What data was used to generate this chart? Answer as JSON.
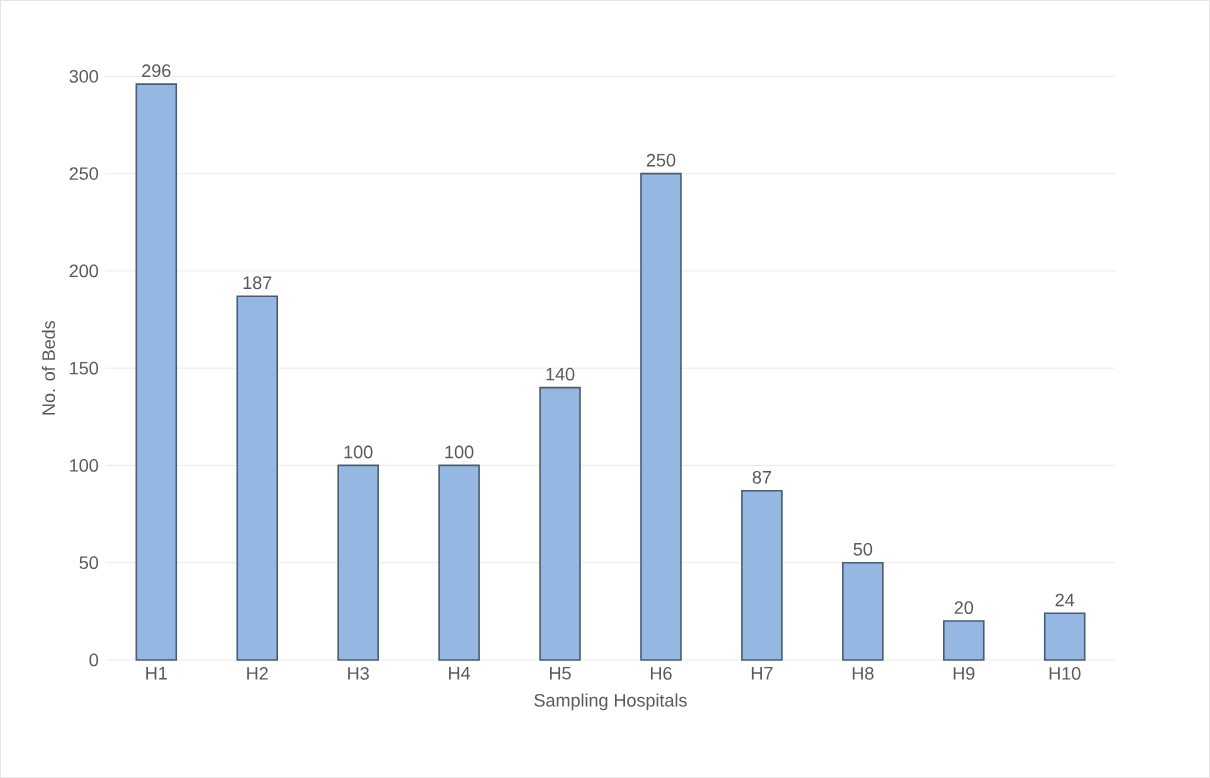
{
  "chart_data": {
    "type": "bar",
    "xlabel": "Sampling Hospitals",
    "ylabel": "No. of Beds",
    "categories": [
      "H1",
      "H2",
      "H3",
      "H4",
      "H5",
      "H6",
      "H7",
      "H8",
      "H9",
      "H10"
    ],
    "values": [
      296,
      187,
      100,
      100,
      140,
      250,
      87,
      50,
      20,
      24
    ],
    "color": "#95b8e2",
    "ylim": [
      0,
      300
    ],
    "yticks": [
      0,
      50,
      100,
      150,
      200,
      250,
      300
    ],
    "grid": "y",
    "data_labels": true
  }
}
